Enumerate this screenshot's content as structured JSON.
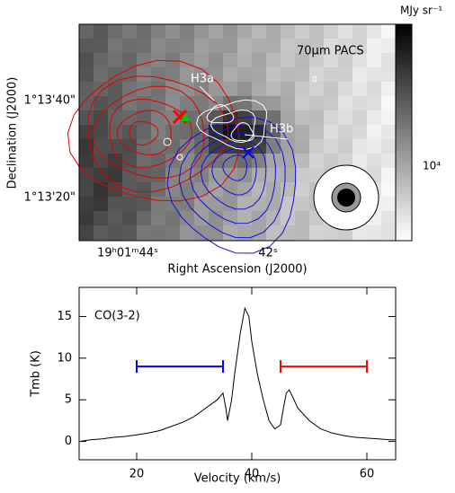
{
  "chart_data": [
    {
      "type": "image",
      "title": "70µm PACS",
      "colorbar_label": "MJy sr⁻¹",
      "colorbar_ticks": [
        "10⁴"
      ],
      "xlabel": "Right Ascension (J2000)",
      "ylabel": "Declination (J2000)",
      "xticks": [
        "19ʰ01ᵐ44ˢ",
        "42ˢ"
      ],
      "yticks": [
        "1°13'40\"",
        "1°13'20\""
      ],
      "annotations": [
        "H3a",
        "H3b"
      ]
    },
    {
      "type": "line",
      "annotation": "CO(3-2)",
      "xlabel": "Velocity (km/s)",
      "ylabel": "Tmb (K)",
      "color": "#000000",
      "x": [
        10,
        12,
        14,
        16,
        18,
        20,
        22,
        24,
        26,
        28,
        30,
        32,
        34,
        35,
        35.5,
        35.8,
        36.5,
        37,
        38,
        38.8,
        39.5,
        40,
        41,
        42,
        43,
        44,
        45,
        45.5,
        46,
        46.5,
        47,
        48,
        50,
        52,
        54,
        56,
        58,
        60,
        62,
        64,
        65
      ],
      "values": [
        0,
        0.2,
        0.3,
        0.5,
        0.6,
        0.8,
        1,
        1.3,
        1.8,
        2.3,
        3,
        4,
        5,
        5.8,
        4,
        2.5,
        5,
        8,
        13,
        16,
        15,
        12,
        8,
        5,
        2.5,
        1.5,
        2,
        4,
        5.8,
        6.2,
        5.5,
        4,
        2.5,
        1.5,
        1,
        0.7,
        0.5,
        0.4,
        0.3,
        0.2,
        0.2
      ],
      "ranges": [
        {
          "color": "#0000ff",
          "start": 20,
          "end": 35,
          "y": 9
        },
        {
          "color": "#ff0000",
          "start": 45,
          "end": 60,
          "y": 9
        }
      ],
      "xlim": [
        10,
        65
      ],
      "ylim": [
        -2.2,
        18.5
      ],
      "xticks": [
        20,
        40,
        60
      ],
      "yticks": [
        0,
        5,
        10,
        15
      ]
    }
  ]
}
